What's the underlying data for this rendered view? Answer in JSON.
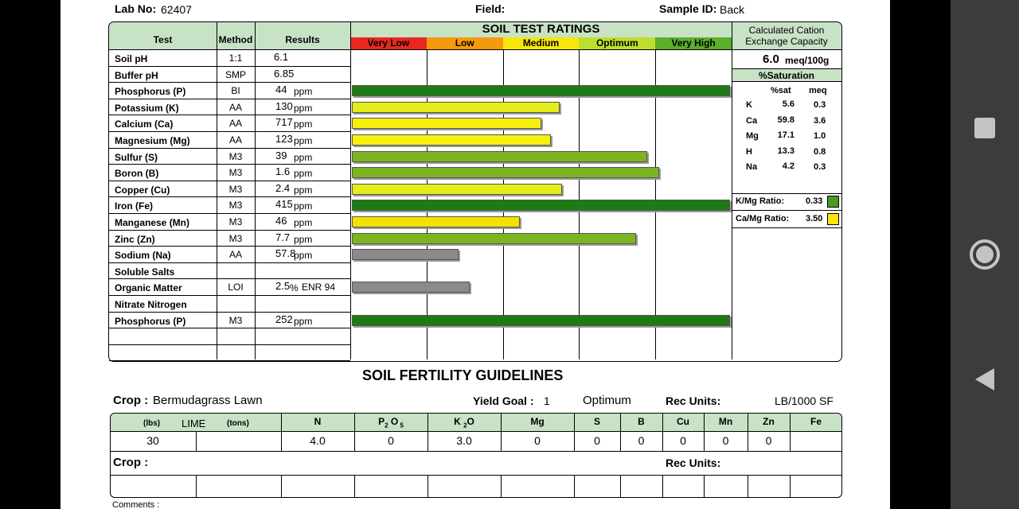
{
  "header": {
    "lab_no_label": "Lab No:",
    "lab_no": "62407",
    "field_label": "Field:",
    "field": "",
    "sample_id_label": "Sample ID:",
    "sample_id": "Back"
  },
  "columns": {
    "test": "Test",
    "method": "Method",
    "results": "Results",
    "ratings_title": "SOIL TEST RATINGS"
  },
  "rating_levels": [
    {
      "label": "Very Low",
      "color": "#e8281e"
    },
    {
      "label": "Low",
      "color": "#f59a0c"
    },
    {
      "label": "Medium",
      "color": "#f6e60a"
    },
    {
      "label": "Optimum",
      "color": "#bdde2c"
    },
    {
      "label": "Very High",
      "color": "#5aae2a"
    }
  ],
  "rows": [
    {
      "test": "Soil pH",
      "method": "1:1",
      "value": "6.1",
      "unit": "",
      "bar": null,
      "color": ""
    },
    {
      "test": "Buffer pH",
      "method": "SMP",
      "value": "6.85",
      "unit": "",
      "bar": null,
      "color": ""
    },
    {
      "test": "Phosphorus (P)",
      "method": "BI",
      "value": "44",
      "unit": "ppm",
      "bar": 1.0,
      "color": "#1e7a12"
    },
    {
      "test": "Potassium (K)",
      "method": "AA",
      "value": "130",
      "unit": "ppm",
      "bar": 0.55,
      "color": "#e6ec1a"
    },
    {
      "test": "Calcium (Ca)",
      "method": "AA",
      "value": "717",
      "unit": "ppm",
      "bar": 0.5,
      "color": "#f6f00a"
    },
    {
      "test": "Magnesium (Mg)",
      "method": "AA",
      "value": "123",
      "unit": "ppm",
      "bar": 0.526,
      "color": "#f6f00a"
    },
    {
      "test": "Sulfur (S)",
      "method": "M3",
      "value": "39",
      "unit": "ppm",
      "bar": 0.782,
      "color": "#7cb422"
    },
    {
      "test": "Boron (B)",
      "method": "M3",
      "value": "1.6",
      "unit": "ppm",
      "bar": 0.812,
      "color": "#7cb422"
    },
    {
      "test": "Copper (Cu)",
      "method": "M3",
      "value": "2.4",
      "unit": "ppm",
      "bar": 0.556,
      "color": "#e6ec1a"
    },
    {
      "test": "Iron (Fe)",
      "method": "M3",
      "value": "415",
      "unit": "ppm",
      "bar": 1.0,
      "color": "#1e7a12"
    },
    {
      "test": "Manganese (Mn)",
      "method": "M3",
      "value": "46",
      "unit": "ppm",
      "bar": 0.444,
      "color": "#f6e000"
    },
    {
      "test": "Zinc (Zn)",
      "method": "M3",
      "value": "7.7",
      "unit": "ppm",
      "bar": 0.752,
      "color": "#7cb422"
    },
    {
      "test": "Sodium (Na)",
      "method": "AA",
      "value": "57.8",
      "unit": "ppm",
      "bar": 0.282,
      "color": "#8a8a8a"
    },
    {
      "test": "Soluble Salts",
      "method": "",
      "value": "",
      "unit": "",
      "bar": null,
      "color": ""
    },
    {
      "test": "Organic Matter",
      "method": "LOI",
      "value": "2.5",
      "unit": "%",
      "extra": "ENR  94",
      "bar": 0.312,
      "color": "#8a8a8a"
    },
    {
      "test": "Nitrate Nitrogen",
      "method": "",
      "value": "",
      "unit": "",
      "bar": null,
      "color": ""
    },
    {
      "test": "Phosphorus (P)",
      "method": "M3",
      "value": "252",
      "unit": "ppm",
      "bar": 1.0,
      "color": "#1e7a12"
    },
    {
      "test": "",
      "method": "",
      "value": "",
      "unit": "",
      "bar": null,
      "color": ""
    },
    {
      "test": "",
      "method": "",
      "value": "",
      "unit": "",
      "bar": null,
      "color": ""
    }
  ],
  "cec": {
    "title_line1": "Calculated Cation",
    "title_line2": "Exchange Capacity",
    "value": "6.0",
    "unit": "meq/100g",
    "saturation_title": "%Saturation",
    "col_sat": "%sat",
    "col_meq": "meq",
    "items": [
      {
        "el": "K",
        "sat": "5.6",
        "meq": "0.3"
      },
      {
        "el": "Ca",
        "sat": "59.8",
        "meq": "3.6"
      },
      {
        "el": "Mg",
        "sat": "17.1",
        "meq": "1.0"
      },
      {
        "el": "H",
        "sat": "13.3",
        "meq": "0.8"
      },
      {
        "el": "Na",
        "sat": "4.2",
        "meq": "0.3"
      }
    ],
    "kmg_label": "K/Mg Ratio:",
    "kmg_value": "0.33",
    "kmg_color": "#4a9a1e",
    "camg_label": "Ca/Mg Ratio:",
    "camg_value": "3.50",
    "camg_color": "#f6e60a"
  },
  "guidelines": {
    "title": "SOIL FERTILITY GUIDELINES",
    "crop_label": "Crop :",
    "crop": "Bermudagrass Lawn",
    "yield_label": "Yield Goal :",
    "yield": "1",
    "yield_level": "Optimum",
    "rec_units_label": "Rec Units:",
    "rec_units": "LB/1000 SF",
    "lime_lbs": "(lbs)",
    "lime_label": "LIME",
    "lime_tons": "(tons)",
    "nutrients": [
      "N",
      "P2O5",
      "K2O",
      "Mg",
      "S",
      "B",
      "Cu",
      "Mn",
      "Zn",
      "Fe"
    ],
    "values": [
      "30",
      "",
      "4.0",
      "0",
      "3.0",
      "0",
      "0",
      "0",
      "0",
      "0",
      "0",
      ""
    ],
    "crop2_label": "Crop :",
    "rec_units2_label": "Rec Units:",
    "comments_label": "Comments :"
  }
}
